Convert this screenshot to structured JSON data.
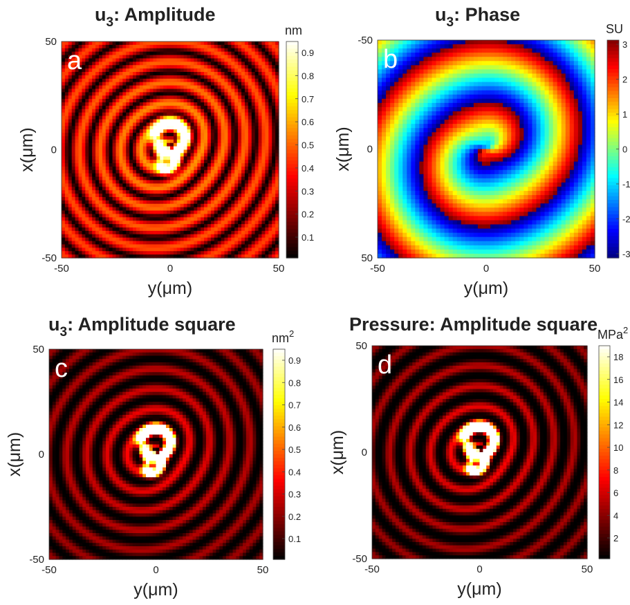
{
  "figure": {
    "panels": [
      {
        "title_main": "u",
        "title_sub": "3",
        "title_rest": ": Amplitude",
        "letter": "a",
        "xlabel": "y(μm)",
        "ylabel": "x(μm)",
        "xticks": [
          "-50",
          "0",
          "50"
        ],
        "yticks": [
          "50",
          "0",
          "-50"
        ],
        "colorbar": {
          "label": "nm",
          "label_sup": "",
          "ticks": [
            "0.1",
            "0.2",
            "0.3",
            "0.4",
            "0.5",
            "0.6",
            "0.7",
            "0.8",
            "0.9"
          ]
        }
      },
      {
        "title_main": "u",
        "title_sub": "3",
        "title_rest": ": Phase",
        "letter": "b",
        "xlabel": "y(μm)",
        "ylabel": "x(μm)",
        "xticks": [
          "-50",
          "0",
          "50"
        ],
        "yticks": [
          "-50",
          "0",
          "50"
        ],
        "colorbar": {
          "label": "SU",
          "label_sup": "",
          "ticks": [
            "3",
            "2",
            "1",
            "0",
            "-1",
            "-2",
            "-3"
          ]
        }
      },
      {
        "title_main": "u",
        "title_sub": "3",
        "title_rest": ": Amplitude square",
        "letter": "c",
        "xlabel": "y(μm)",
        "ylabel": "x(μm)",
        "xticks": [
          "-50",
          "0",
          "50"
        ],
        "yticks": [
          "50",
          "0",
          "-50"
        ],
        "colorbar": {
          "label": "nm",
          "label_sup": "2",
          "ticks": [
            "0.1",
            "0.2",
            "0.3",
            "0.4",
            "0.5",
            "0.6",
            "0.7",
            "0.8",
            "0.9"
          ]
        }
      },
      {
        "title_main": "Pressure: Amplitude square",
        "title_sub": "",
        "title_rest": "",
        "letter": "d",
        "xlabel": "y(μm)",
        "ylabel": "x(μm)",
        "xticks": [
          "-50",
          "0",
          "50"
        ],
        "yticks": [
          "50",
          "0",
          "-50"
        ],
        "colorbar": {
          "label": "MPa",
          "label_sup": "2",
          "ticks": [
            "2",
            "4",
            "6",
            "8",
            "10",
            "12",
            "14",
            "16",
            "18"
          ]
        }
      }
    ]
  },
  "chart_data": [
    {
      "type": "heatmap",
      "title": "u3: Amplitude",
      "xlabel": "y(μm)",
      "ylabel": "x(μm)",
      "xlim": [
        -50,
        50
      ],
      "ylim": [
        -50,
        50
      ],
      "colormap": "hot",
      "colorbar": {
        "label": "nm",
        "range": [
          0,
          0.95
        ]
      },
      "features": {
        "peak_value": 0.95,
        "peak_location_y_x": [
          0,
          3
        ],
        "pattern": "concentric rings"
      }
    },
    {
      "type": "heatmap",
      "title": "u3: Phase",
      "xlabel": "y(μm)",
      "ylabel": "x(μm)",
      "xlim": [
        -50,
        50
      ],
      "ylim": [
        -50,
        50
      ],
      "y_reversed": true,
      "colormap": "jet",
      "colorbar": {
        "label": "SU",
        "range": [
          -3.14,
          3.14
        ]
      },
      "features": {
        "pattern": "spiral phase wraps around center"
      }
    },
    {
      "type": "heatmap",
      "title": "u3: Amplitude square",
      "xlabel": "y(μm)",
      "ylabel": "x(μm)",
      "xlim": [
        -50,
        50
      ],
      "ylim": [
        -50,
        50
      ],
      "colormap": "hot",
      "colorbar": {
        "label": "nm^2",
        "range": [
          0,
          0.92
        ]
      },
      "features": {
        "peak_value": 0.9,
        "pattern": "concentric rings"
      }
    },
    {
      "type": "heatmap",
      "title": "Pressure: Amplitude square",
      "xlabel": "y(μm)",
      "ylabel": "x(μm)",
      "xlim": [
        -50,
        50
      ],
      "ylim": [
        -50,
        50
      ],
      "colormap": "hot",
      "colorbar": {
        "label": "MPa^2",
        "range": [
          0,
          19.5
        ]
      },
      "features": {
        "peak_value": 19,
        "pattern": "concentric rings"
      }
    }
  ]
}
